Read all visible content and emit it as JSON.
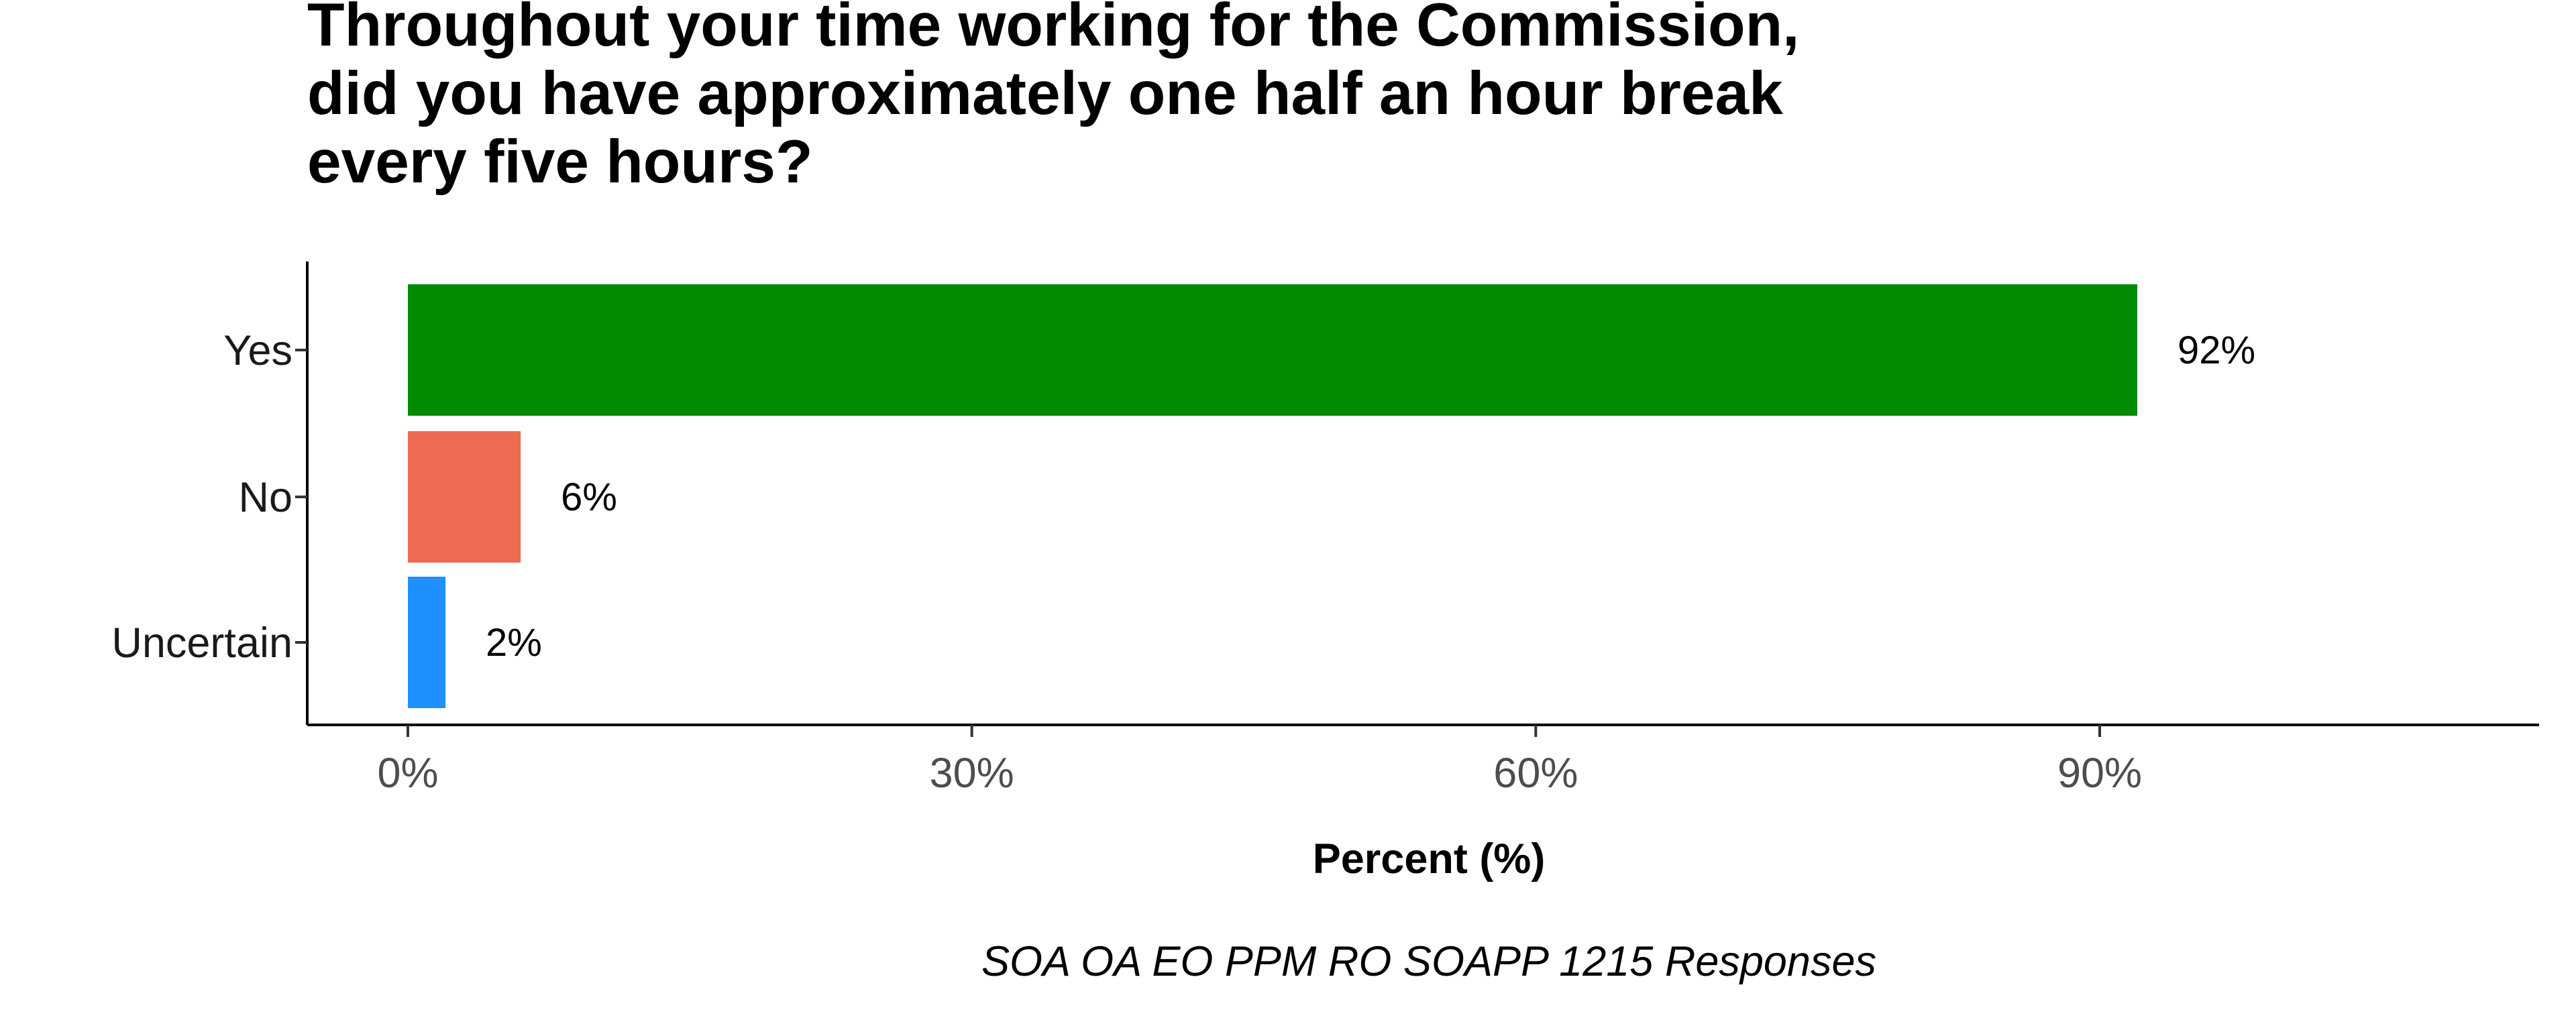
{
  "chart_data": {
    "type": "bar",
    "orientation": "horizontal",
    "title": [
      "Throughout your time working for the Commission,",
      "did you have approximately one half an hour break",
      "every five hours?"
    ],
    "categories": [
      "Yes",
      "No",
      "Uncertain"
    ],
    "values": [
      92,
      6,
      2
    ],
    "data_labels": [
      "92%",
      "6%",
      "2%"
    ],
    "colors": [
      "#008B00",
      "#EE6A50",
      "#1E90FF"
    ],
    "xlabel": "Percent (%)",
    "ylabel": "",
    "xlim": [
      0,
      115
    ],
    "x_ticks": [
      0,
      30,
      60,
      90
    ],
    "x_tick_labels": [
      "0%",
      "30%",
      "60%",
      "90%"
    ],
    "caption": "SOA OA EO PPM RO SOAPP 1215 Responses",
    "grid": false,
    "legend": "none"
  }
}
